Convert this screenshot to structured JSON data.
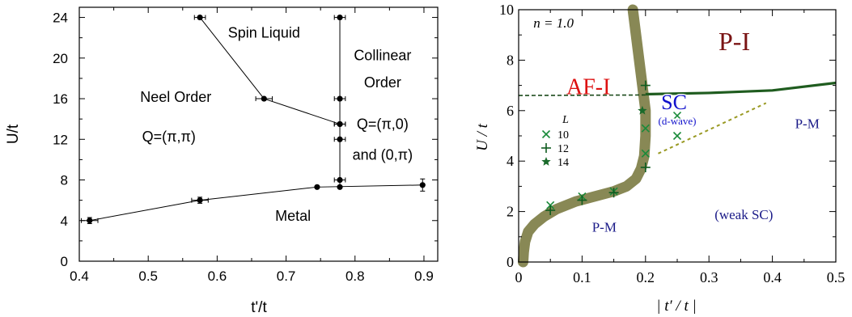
{
  "chart_data": [
    {
      "type": "line",
      "xlabel": "t'/t",
      "ylabel": "U/t",
      "xlim": [
        0.4,
        0.92
      ],
      "ylim": [
        0,
        25
      ],
      "xticks": [
        0.4,
        0.5,
        0.6,
        0.7,
        0.8,
        0.9
      ],
      "xtick_labels": [
        "0.4",
        "0.5",
        "0.6",
        "0.7",
        "0.8",
        "0.9"
      ],
      "yticks": [
        0,
        4,
        8,
        12,
        16,
        20,
        24
      ],
      "ytick_labels": [
        "0",
        "4",
        "8",
        "12",
        "16",
        "20",
        "24"
      ],
      "grid": false,
      "series": [
        {
          "x": [
            0.415,
            0.575,
            0.745,
            0.898
          ],
          "y": [
            4.0,
            6.0,
            7.3,
            7.5
          ],
          "xerr": [
            0.012,
            0.012,
            0.0,
            0.0
          ],
          "yerr": [
            0.3,
            0.3,
            0.0,
            0.6
          ]
        },
        {
          "x": [
            0.575,
            0.668,
            0.778
          ],
          "y": [
            24.0,
            16.0,
            13.5
          ],
          "xerr": [
            0.008,
            0.012,
            0.008
          ],
          "yerr": [
            0,
            0,
            0
          ]
        },
        {
          "x": [
            0.778,
            0.778,
            0.778,
            0.778,
            0.778,
            0.778
          ],
          "y": [
            24.0,
            16.0,
            13.5,
            12.0,
            8.0,
            7.3
          ],
          "xerr": [
            0.008,
            0.008,
            0.008,
            0.008,
            0.008,
            0.0
          ],
          "yerr": [
            0,
            0,
            0,
            0,
            0,
            0
          ]
        }
      ],
      "region_labels": [
        {
          "text": "Spin Liquid",
          "x": 0.668,
          "y": 22.0
        },
        {
          "text": "Collinear",
          "x": 0.84,
          "y": 19.8
        },
        {
          "text": "Order",
          "x": 0.84,
          "y": 17.1
        },
        {
          "text": "Neel Order",
          "x": 0.54,
          "y": 15.7
        },
        {
          "text": "Q=(π,π)",
          "x": 0.53,
          "y": 11.8
        },
        {
          "text": "Q=(π,0)",
          "x": 0.84,
          "y": 13.0
        },
        {
          "text": "and (0,π)",
          "x": 0.84,
          "y": 10.0
        },
        {
          "text": "Metal",
          "x": 0.71,
          "y": 4.0
        }
      ]
    },
    {
      "type": "line",
      "xlabel": "| t′ / t |",
      "ylabel": "U / t",
      "xlim": [
        0,
        0.5
      ],
      "ylim": [
        0,
        10
      ],
      "xticks": [
        0,
        0.1,
        0.2,
        0.3,
        0.4,
        0.5
      ],
      "xtick_labels": [
        "0",
        "0.1",
        "0.2",
        "0.3",
        "0.4",
        "0.5"
      ],
      "yticks": [
        0,
        2,
        4,
        6,
        8,
        10
      ],
      "ytick_labels": [
        "0",
        "2",
        "4",
        "6",
        "8",
        "10"
      ],
      "grid": false,
      "annotation": "n = 1.0",
      "colors": {
        "boundary": "#888855",
        "insulator_line": "#1f5c1f",
        "markers": "#1a8a3a",
        "weak_sc_line": "#999922",
        "pi": "#7a1414",
        "afi": "#dd1111",
        "sc": "#1111cc",
        "pm": "#1a1a88"
      },
      "boundary_curve": {
        "x": [
          0.18,
          0.185,
          0.19,
          0.195,
          0.2,
          0.2,
          0.198,
          0.193,
          0.185,
          0.17,
          0.15,
          0.12,
          0.09,
          0.06,
          0.04,
          0.025,
          0.015,
          0.01,
          0.008,
          0.007
        ],
        "y": [
          10.0,
          9.0,
          8.0,
          7.0,
          6.0,
          5.0,
          4.2,
          3.7,
          3.3,
          3.0,
          2.8,
          2.6,
          2.4,
          2.1,
          1.8,
          1.5,
          1.2,
          0.8,
          0.4,
          0.0
        ]
      },
      "insulator_boundary": {
        "x": [
          0.2,
          0.3,
          0.4,
          0.5
        ],
        "y": [
          6.65,
          6.7,
          6.8,
          7.1
        ]
      },
      "afi_dashed": {
        "x": [
          0.0,
          0.2
        ],
        "y": [
          6.6,
          6.62
        ]
      },
      "weak_sc_dashed": {
        "x": [
          0.22,
          0.39
        ],
        "y": [
          4.3,
          6.3
        ]
      },
      "legend": {
        "title": "L",
        "entries": [
          "10",
          "12",
          "14"
        ],
        "placement": "left"
      },
      "points": {
        "L10": {
          "x": [
            0.05,
            0.1,
            0.15,
            0.2,
            0.2,
            0.25,
            0.25
          ],
          "y": [
            2.25,
            2.6,
            2.8,
            4.3,
            5.3,
            5.0,
            5.8
          ]
        },
        "L12": {
          "x": [
            0.05,
            0.1,
            0.15,
            0.2,
            0.2
          ],
          "y": [
            2.05,
            2.45,
            2.75,
            3.75,
            7.0
          ]
        },
        "L14": {
          "x": [
            0.195
          ],
          "y": [
            6.0
          ]
        }
      },
      "region_labels": [
        {
          "text": "P-I",
          "x": 0.34,
          "y": 8.4
        },
        {
          "text": "AF-I",
          "x": 0.11,
          "y": 6.65
        },
        {
          "text": "SC",
          "x": 0.245,
          "y": 6.05
        },
        {
          "text": "(d-wave)",
          "x": 0.25,
          "y": 5.45
        },
        {
          "text": "P-M",
          "x": 0.455,
          "y": 5.3
        },
        {
          "text": "P-M",
          "x": 0.135,
          "y": 1.2
        },
        {
          "text": "(weak SC)",
          "x": 0.355,
          "y": 1.7
        }
      ]
    }
  ]
}
